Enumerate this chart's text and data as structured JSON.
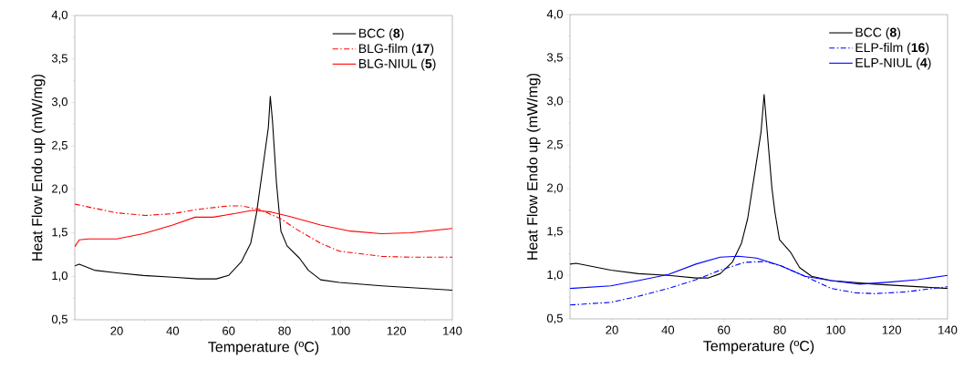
{
  "chart_data": [
    {
      "type": "line",
      "xlabel": "Temperature (ºC)",
      "ylabel": "Heat Flow Endo up (mW/mg)",
      "xlim": [
        5,
        140
      ],
      "ylim": [
        0.5,
        4.0
      ],
      "xticks": [
        20,
        40,
        60,
        80,
        100,
        120,
        140
      ],
      "yticks": [
        {
          "value": 0.5,
          "label": "0,5"
        },
        {
          "value": 1.0,
          "label": "1,0"
        },
        {
          "value": 1.5,
          "label": "1,5"
        },
        {
          "value": 2.0,
          "label": "2,0"
        },
        {
          "value": 2.5,
          "label": "2,5"
        },
        {
          "value": 3.0,
          "label": "3,0"
        },
        {
          "value": 3.5,
          "label": "3,5"
        },
        {
          "value": 4.0,
          "label": "4,0"
        }
      ],
      "legend": "top right",
      "series": [
        {
          "name": "BCC (**8**)",
          "color": "#000000",
          "line_style": "solid",
          "x": [
            5,
            6.6,
            12,
            20,
            29.5,
            40,
            49,
            55.6,
            60,
            64.6,
            67.9,
            70,
            72.7,
            74.2,
            74.9,
            75.7,
            77.1,
            78.7,
            80.9,
            85.3,
            88.5,
            92.9,
            99.5,
            114.7,
            140
          ],
          "values": [
            1.12,
            1.14,
            1.07,
            1.04,
            1.01,
            0.99,
            0.97,
            0.97,
            1.01,
            1.17,
            1.38,
            1.73,
            2.36,
            2.71,
            3.07,
            2.78,
            2.08,
            1.52,
            1.35,
            1.21,
            1.07,
            0.96,
            0.93,
            0.89,
            0.84
          ]
        },
        {
          "name": "BLG-film (**17**)",
          "color": "#ff0000",
          "line_style": "dashdot",
          "x": [
            5,
            20,
            30.3,
            40,
            49,
            60,
            64.6,
            71,
            78.7,
            85.3,
            92.9,
            99.5,
            114.7,
            125,
            140
          ],
          "values": [
            1.83,
            1.73,
            1.7,
            1.72,
            1.77,
            1.81,
            1.81,
            1.77,
            1.66,
            1.52,
            1.38,
            1.29,
            1.23,
            1.22,
            1.22
          ]
        },
        {
          "name": "BLG-NIUL (**5**)",
          "color": "#ff0000",
          "line_style": "solid",
          "x": [
            5,
            6.6,
            9.9,
            20,
            29.5,
            40,
            48,
            54.5,
            60,
            68.7,
            75.2,
            81.7,
            92.9,
            103.5,
            114.7,
            125,
            140
          ],
          "values": [
            1.34,
            1.42,
            1.43,
            1.43,
            1.49,
            1.59,
            1.68,
            1.68,
            1.71,
            1.76,
            1.74,
            1.69,
            1.59,
            1.52,
            1.49,
            1.5,
            1.55
          ]
        }
      ]
    },
    {
      "type": "line",
      "xlabel": "Temperature (ºC)",
      "ylabel": "Heat Flow Endo up (mW/mg)",
      "xlim": [
        5,
        140
      ],
      "ylim": [
        0.5,
        4.0
      ],
      "xticks": [
        20,
        40,
        60,
        80,
        100,
        120,
        140
      ],
      "yticks": [
        {
          "value": 0.5,
          "label": "0,5"
        },
        {
          "value": 1.0,
          "label": "1,0"
        },
        {
          "value": 1.5,
          "label": "1,5"
        },
        {
          "value": 2.0,
          "label": "2,0"
        },
        {
          "value": 2.5,
          "label": "2,5"
        },
        {
          "value": 3.0,
          "label": "3,0"
        },
        {
          "value": 3.5,
          "label": "3,5"
        },
        {
          "value": 4.0,
          "label": "4,0"
        }
      ],
      "legend": "top right",
      "series": [
        {
          "name": "BCC (**8**)",
          "color": "#000000",
          "line_style": "solid",
          "x": [
            5,
            7.2,
            19.6,
            29.4,
            40.2,
            50,
            54.3,
            58.7,
            63,
            66.3,
            68.5,
            71.2,
            73.3,
            74.4,
            75.2,
            77.2,
            78.3,
            79.9,
            83.8,
            87.1,
            91.4,
            98.4,
            113.9,
            140
          ],
          "values": [
            1.13,
            1.14,
            1.06,
            1.02,
            1.0,
            0.97,
            0.97,
            1.02,
            1.15,
            1.37,
            1.65,
            2.21,
            2.65,
            3.08,
            2.77,
            2.0,
            1.72,
            1.41,
            1.27,
            1.09,
            0.99,
            0.94,
            0.9,
            0.85
          ]
        },
        {
          "name": "ELP-film (**16**)",
          "color": "#0000ff",
          "line_style": "dashdot",
          "x": [
            5,
            19.6,
            29.4,
            40.2,
            50,
            58.7,
            67.4,
            75,
            80.4,
            89,
            98.4,
            107,
            113.9,
            124.8,
            140
          ],
          "values": [
            0.66,
            0.69,
            0.76,
            0.85,
            0.95,
            1.06,
            1.15,
            1.16,
            1.11,
            0.99,
            0.85,
            0.8,
            0.79,
            0.81,
            0.87
          ]
        },
        {
          "name": "ELP-NIUL (**4**)",
          "color": "#0000ff",
          "line_style": "solid",
          "x": [
            5,
            19.6,
            29.4,
            40.2,
            50,
            58.7,
            65.2,
            71.7,
            80.4,
            89,
            98.4,
            108.6,
            118.3,
            129.2,
            140
          ],
          "values": [
            0.85,
            0.88,
            0.94,
            1.01,
            1.13,
            1.21,
            1.22,
            1.2,
            1.11,
            0.99,
            0.94,
            0.9,
            0.92,
            0.95,
            1.0
          ]
        }
      ]
    }
  ]
}
